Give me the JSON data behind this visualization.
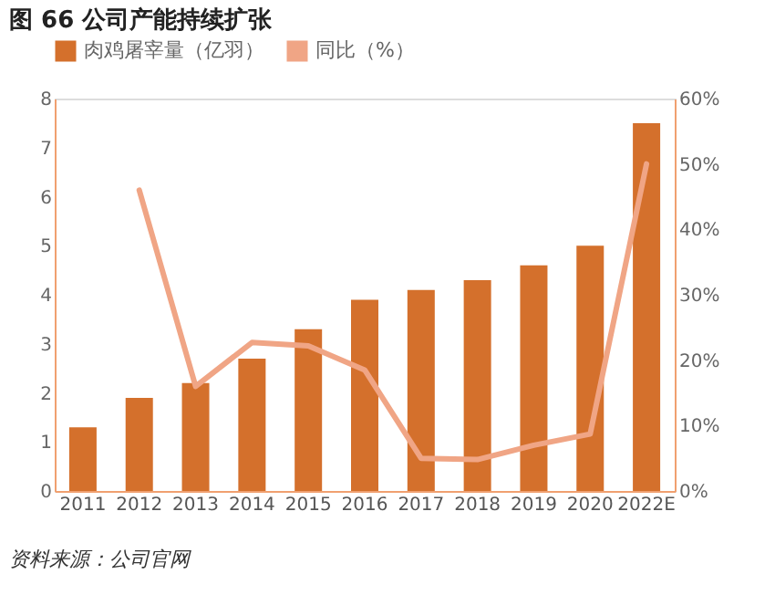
{
  "chart_data": {
    "type": "bar",
    "title": "图 66 公司产能持续扩张",
    "categories": [
      "2011",
      "2012",
      "2013",
      "2014",
      "2015",
      "2016",
      "2017",
      "2018",
      "2019",
      "2020",
      "2022E"
    ],
    "series": [
      {
        "name": "肉鸡屠宰量（亿羽）",
        "color": "#d4702c",
        "values": [
          1.3,
          1.9,
          2.2,
          2.7,
          3.3,
          3.9,
          4.1,
          4.3,
          4.6,
          5.0,
          7.5
        ]
      },
      {
        "name": "同比（%）",
        "type": "line",
        "axis": "y2",
        "color": "#f0a585",
        "values": [
          null,
          46,
          16,
          22.7,
          22.2,
          18.5,
          5,
          4.8,
          7,
          8.7,
          50
        ]
      }
    ],
    "ylim": [
      0,
      8
    ],
    "yticks": [
      0,
      1,
      2,
      3,
      4,
      5,
      6,
      7,
      8
    ],
    "y2lim": [
      0,
      60
    ],
    "y2ticks": [
      {
        "value": 0,
        "label": "0%"
      },
      {
        "value": 10,
        "label": "10%"
      },
      {
        "value": 20,
        "label": "20%"
      },
      {
        "value": 30,
        "label": "30%"
      },
      {
        "value": 40,
        "label": "40%"
      },
      {
        "value": 50,
        "label": "50%"
      },
      {
        "value": 60,
        "label": "60%"
      }
    ],
    "grid": false,
    "legend": "top",
    "line_style": "solid",
    "marker": "none",
    "annotations": [
      "资料来源：公司官网"
    ]
  }
}
